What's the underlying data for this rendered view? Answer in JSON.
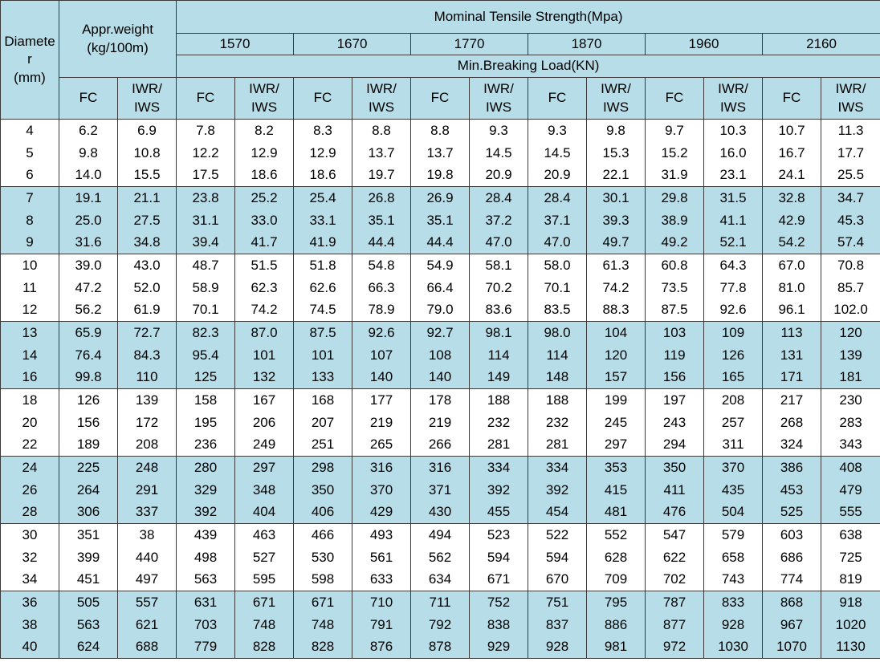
{
  "header": {
    "diameter": "Diamete\nr\n(mm)",
    "weight": "Appr.weight\n(kg/100m)",
    "tensile": "Mominal Tensile Strength(Mpa)",
    "grades": [
      "1570",
      "1670",
      "1770",
      "1870",
      "1960",
      "2160"
    ],
    "breaking": "Min.Breaking Load(KN)",
    "fc": "FC",
    "iwr": "IWR/\nIWS"
  },
  "colors": {
    "band_blue": "#b7dde8",
    "band_white": "#ffffff",
    "grid_line": "#3a3a3a",
    "corner_mark": "#0a7a2a"
  },
  "rows": [
    [
      "4",
      "6.2",
      "6.9",
      "7.8",
      "8.2",
      "8.3",
      "8.8",
      "8.8",
      "9.3",
      "9.3",
      "9.8",
      "9.7",
      "10.3",
      "10.7",
      "11.3"
    ],
    [
      "5",
      "9.8",
      "10.8",
      "12.2",
      "12.9",
      "12.9",
      "13.7",
      "13.7",
      "14.5",
      "14.5",
      "15.3",
      "15.2",
      "16.0",
      "16.7",
      "17.7"
    ],
    [
      "6",
      "14.0",
      "15.5",
      "17.5",
      "18.6",
      "18.6",
      "19.7",
      "19.8",
      "20.9",
      "20.9",
      "22.1",
      "31.9",
      "23.1",
      "24.1",
      "25.5"
    ],
    [
      "7",
      "19.1",
      "21.1",
      "23.8",
      "25.2",
      "25.4",
      "26.8",
      "26.9",
      "28.4",
      "28.4",
      "30.1",
      "29.8",
      "31.5",
      "32.8",
      "34.7"
    ],
    [
      "8",
      "25.0",
      "27.5",
      "31.1",
      "33.0",
      "33.1",
      "35.1",
      "35.1",
      "37.2",
      "37.1",
      "39.3",
      "38.9",
      "41.1",
      "42.9",
      "45.3"
    ],
    [
      "9",
      "31.6",
      "34.8",
      "39.4",
      "41.7",
      "41.9",
      "44.4",
      "44.4",
      "47.0",
      "47.0",
      "49.7",
      "49.2",
      "52.1",
      "54.2",
      "57.4"
    ],
    [
      "10",
      "39.0",
      "43.0",
      "48.7",
      "51.5",
      "51.8",
      "54.8",
      "54.9",
      "58.1",
      "58.0",
      "61.3",
      "60.8",
      "64.3",
      "67.0",
      "70.8"
    ],
    [
      "11",
      "47.2",
      "52.0",
      "58.9",
      "62.3",
      "62.6",
      "66.3",
      "66.4",
      "70.2",
      "70.1",
      "74.2",
      "73.5",
      "77.8",
      "81.0",
      "85.7"
    ],
    [
      "12",
      "56.2",
      "61.9",
      "70.1",
      "74.2",
      "74.5",
      "78.9",
      "79.0",
      "83.6",
      "83.5",
      "88.3",
      "87.5",
      "92.6",
      "96.1",
      "102.0"
    ],
    [
      "13",
      "65.9",
      "72.7",
      "82.3",
      "87.0",
      "87.5",
      "92.6",
      "92.7",
      "98.1",
      "98.0",
      "104",
      "103",
      "109",
      "113",
      "120"
    ],
    [
      "14",
      "76.4",
      "84.3",
      "95.4",
      "101",
      "101",
      "107",
      "108",
      "114",
      "114",
      "120",
      "119",
      "126",
      "131",
      "139"
    ],
    [
      "16",
      "99.8",
      "110",
      "125",
      "132",
      "133",
      "140",
      "140",
      "149",
      "148",
      "157",
      "156",
      "165",
      "171",
      "181"
    ],
    [
      "18",
      "126",
      "139",
      "158",
      "167",
      "168",
      "177",
      "178",
      "188",
      "188",
      "199",
      "197",
      "208",
      "217",
      "230"
    ],
    [
      "20",
      "156",
      "172",
      "195",
      "206",
      "207",
      "219",
      "219",
      "232",
      "232",
      "245",
      "243",
      "257",
      "268",
      "283"
    ],
    [
      "22",
      "189",
      "208",
      "236",
      "249",
      "251",
      "265",
      "266",
      "281",
      "281",
      "297",
      "294",
      "311",
      "324",
      "343"
    ],
    [
      "24",
      "225",
      "248",
      "280",
      "297",
      "298",
      "316",
      "316",
      "334",
      "334",
      "353",
      "350",
      "370",
      "386",
      "408"
    ],
    [
      "26",
      "264",
      "291",
      "329",
      "348",
      "350",
      "370",
      "371",
      "392",
      "392",
      "415",
      "411",
      "435",
      "453",
      "479"
    ],
    [
      "28",
      "306",
      "337",
      "392",
      "404",
      "406",
      "429",
      "430",
      "455",
      "454",
      "481",
      "476",
      "504",
      "525",
      "555"
    ],
    [
      "30",
      "351",
      "38",
      "439",
      "463",
      "466",
      "493",
      "494",
      "523",
      "522",
      "552",
      "547",
      "579",
      "603",
      "638"
    ],
    [
      "32",
      "399",
      "440",
      "498",
      "527",
      "530",
      "561",
      "562",
      "594",
      "594",
      "628",
      "622",
      "658",
      "686",
      "725"
    ],
    [
      "34",
      "451",
      "497",
      "563",
      "595",
      "598",
      "633",
      "634",
      "671",
      "670",
      "709",
      "702",
      "743",
      "774",
      "819"
    ],
    [
      "36",
      "505",
      "557",
      "631",
      "671",
      "671",
      "710",
      "711",
      "752",
      "751",
      "795",
      "787",
      "833",
      "868",
      "918"
    ],
    [
      "38",
      "563",
      "621",
      "703",
      "748",
      "748",
      "791",
      "792",
      "838",
      "837",
      "886",
      "877",
      "928",
      "967",
      "1020"
    ],
    [
      "40",
      "624",
      "688",
      "779",
      "828",
      "828",
      "876",
      "878",
      "929",
      "928",
      "981",
      "972",
      "1030",
      "1070",
      "1130"
    ]
  ]
}
